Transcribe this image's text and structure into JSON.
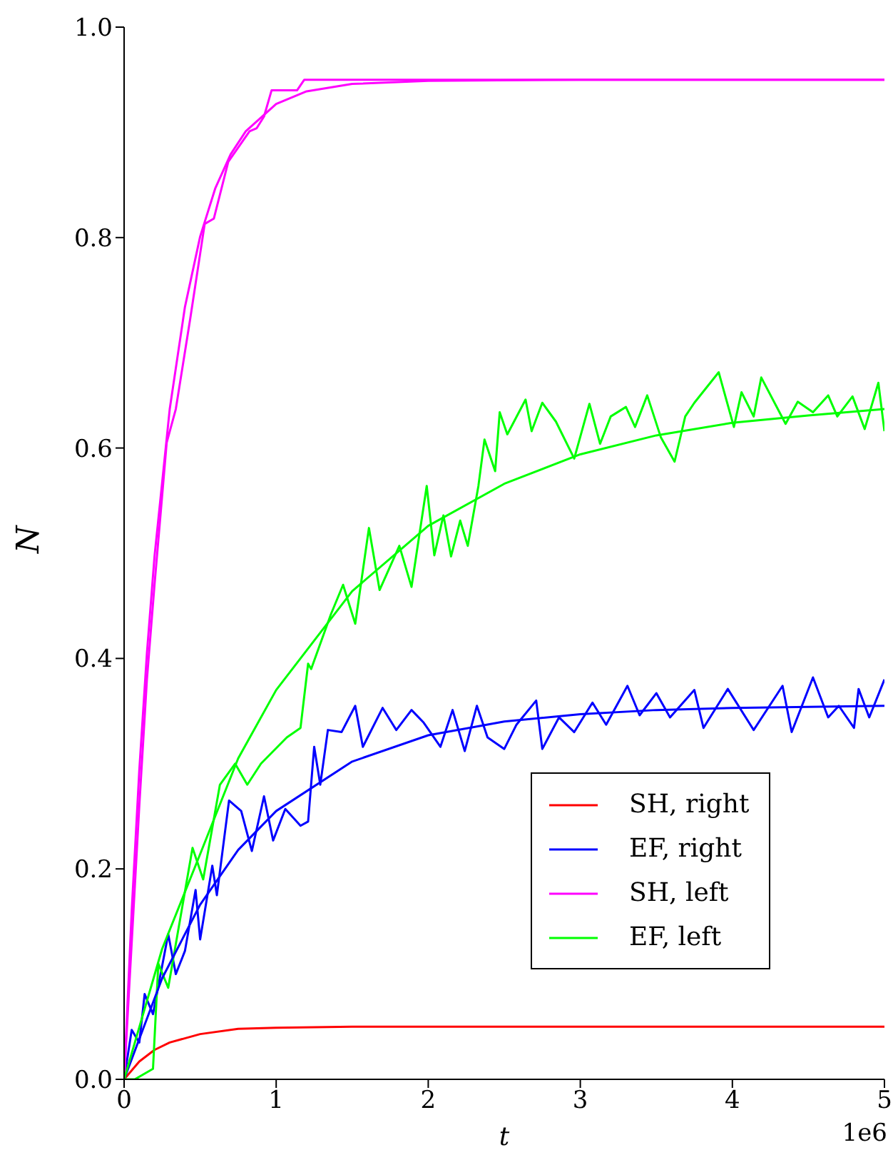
{
  "chart_data": {
    "type": "line",
    "xlabel": "t",
    "ylabel": "N",
    "annotations": [
      "1e6"
    ],
    "xlim": [
      0,
      5
    ],
    "xticks": [
      0,
      1,
      2,
      3,
      4,
      5
    ],
    "ylim": [
      0,
      1
    ],
    "yticks": [
      {
        "value": 0,
        "label": "0.0"
      },
      {
        "value": 0.2,
        "label": "0.2"
      },
      {
        "value": 0.4,
        "label": "0.4"
      },
      {
        "value": 0.6,
        "label": "0.6"
      },
      {
        "value": 0.8,
        "label": "0.8"
      },
      {
        "value": 1,
        "label": "1.0"
      }
    ],
    "legend": "bottom right",
    "grid": false,
    "series": [
      {
        "name": "SH, right",
        "color": "#ff0000",
        "x": [
          0,
          0.1,
          0.2,
          0.3,
          0.5,
          0.75,
          1,
          1.5,
          5
        ],
        "values": [
          0,
          0.017,
          0.028,
          0.035,
          0.043,
          0.048,
          0.049,
          0.05,
          0.05
        ]
      },
      {
        "name": "EF, right",
        "color": "#0000ff",
        "x": [
          0,
          0.05,
          0.1,
          0.135,
          0.19,
          0.29,
          0.34,
          0.4,
          0.47,
          0.5,
          0.58,
          0.61,
          0.69,
          0.77,
          0.84,
          0.92,
          0.98,
          1.06,
          1.16,
          1.21,
          1.25,
          1.29,
          1.34,
          1.43,
          1.52,
          1.57,
          1.7,
          1.79,
          1.89,
          1.97,
          2.08,
          2.16,
          2.24,
          2.32,
          2.39,
          2.5,
          2.58,
          2.71,
          2.75,
          2.86,
          2.96,
          3.08,
          3.17,
          3.31,
          3.39,
          3.5,
          3.59,
          3.75,
          3.81,
          3.97,
          4.14,
          4.33,
          4.39,
          4.53,
          4.63,
          4.7,
          4.8,
          4.83,
          4.9,
          5
        ],
        "values": [
          0,
          0.047,
          0.035,
          0.081,
          0.062,
          0.138,
          0.1,
          0.122,
          0.18,
          0.133,
          0.203,
          0.175,
          0.265,
          0.255,
          0.217,
          0.269,
          0.227,
          0.257,
          0.241,
          0.245,
          0.316,
          0.28,
          0.332,
          0.33,
          0.355,
          0.316,
          0.353,
          0.332,
          0.351,
          0.339,
          0.316,
          0.351,
          0.312,
          0.355,
          0.325,
          0.314,
          0.337,
          0.36,
          0.314,
          0.344,
          0.33,
          0.358,
          0.337,
          0.374,
          0.346,
          0.367,
          0.344,
          0.37,
          0.334,
          0.371,
          0.332,
          0.374,
          0.33,
          0.382,
          0.344,
          0.355,
          0.334,
          0.371,
          0.344,
          0.38
        ]
      },
      {
        "name": "SH, left",
        "color": "#ff00ff",
        "x": [
          0,
          0.05,
          0.1,
          0.15,
          0.2,
          0.28,
          0.34,
          0.435,
          0.53,
          0.59,
          0.685,
          0.825,
          0.872,
          0.92,
          0.97,
          1.138,
          1.185,
          5
        ],
        "values": [
          0,
          0.13,
          0.26,
          0.38,
          0.47,
          0.605,
          0.637,
          0.723,
          0.813,
          0.818,
          0.872,
          0.901,
          0.904,
          0.915,
          0.94,
          0.94,
          0.95,
          0.95
        ]
      },
      {
        "name": "EF, left",
        "color": "#00ff00",
        "x": [
          0,
          0.07,
          0.19,
          0.225,
          0.29,
          0.45,
          0.52,
          0.63,
          0.73,
          0.81,
          0.9,
          1.07,
          1.16,
          1.21,
          1.23,
          1.36,
          1.44,
          1.52,
          1.61,
          1.68,
          1.81,
          1.89,
          1.99,
          2.04,
          2.1,
          2.15,
          2.21,
          2.26,
          2.33,
          2.37,
          2.44,
          2.47,
          2.52,
          2.64,
          2.68,
          2.75,
          2.84,
          2.96,
          3.06,
          3.13,
          3.2,
          3.3,
          3.36,
          3.44,
          3.53,
          3.62,
          3.69,
          3.75,
          3.91,
          4.01,
          4.06,
          4.14,
          4.19,
          4.35,
          4.43,
          4.53,
          4.63,
          4.69,
          4.79,
          4.87,
          4.96,
          5
        ],
        "values": [
          0,
          0,
          0.01,
          0.11,
          0.087,
          0.22,
          0.19,
          0.28,
          0.3,
          0.28,
          0.3,
          0.325,
          0.334,
          0.395,
          0.39,
          0.442,
          0.47,
          0.433,
          0.524,
          0.465,
          0.507,
          0.468,
          0.564,
          0.498,
          0.536,
          0.497,
          0.531,
          0.507,
          0.564,
          0.608,
          0.578,
          0.634,
          0.613,
          0.646,
          0.616,
          0.643,
          0.625,
          0.59,
          0.642,
          0.604,
          0.63,
          0.639,
          0.62,
          0.65,
          0.61,
          0.587,
          0.63,
          0.643,
          0.672,
          0.62,
          0.653,
          0.63,
          0.667,
          0.623,
          0.644,
          0.634,
          0.65,
          0.63,
          0.649,
          0.618,
          0.662,
          0.616
        ]
      },
      {
        "color": "#0000ff",
        "x": [
          0,
          0.25,
          0.5,
          0.75,
          1,
          1.5,
          2,
          2.5,
          3,
          3.5,
          4,
          5
        ],
        "values": [
          0,
          0.096,
          0.166,
          0.218,
          0.255,
          0.302,
          0.327,
          0.34,
          0.347,
          0.351,
          0.353,
          0.355
        ]
      },
      {
        "color": "#ff00ff",
        "x": [
          0,
          0.05,
          0.1,
          0.15,
          0.2,
          0.3,
          0.4,
          0.5,
          0.6,
          0.7,
          0.8,
          1,
          1.2,
          1.5,
          2,
          3,
          5
        ],
        "values": [
          0,
          0.16,
          0.294,
          0.405,
          0.497,
          0.637,
          0.734,
          0.801,
          0.847,
          0.879,
          0.901,
          0.927,
          0.939,
          0.946,
          0.949,
          0.95,
          0.95
        ]
      },
      {
        "color": "#00ff00",
        "x": [
          0,
          0.25,
          0.5,
          0.75,
          1,
          1.5,
          2,
          2.5,
          3,
          3.5,
          4,
          4.5,
          5
        ],
        "values": [
          0,
          0.124,
          0.214,
          0.305,
          0.37,
          0.464,
          0.526,
          0.566,
          0.594,
          0.612,
          0.624,
          0.631,
          0.637
        ]
      }
    ]
  }
}
